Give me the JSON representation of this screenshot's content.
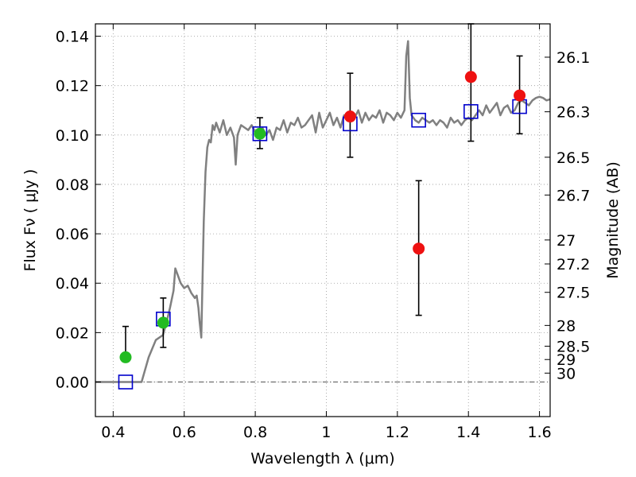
{
  "chart_data": {
    "type": "scatter",
    "xlabel": "Wavelength  λ (μm)",
    "ylabel": "Flux  Fν  ( μJy )",
    "y2label": "Magnitude (AB)",
    "xlim": [
      0.35,
      1.63
    ],
    "ylim": [
      -0.014,
      0.145
    ],
    "grid": true,
    "x_ticks": [
      0.4,
      0.6,
      0.8,
      1.0,
      1.2,
      1.4,
      1.6
    ],
    "x_tick_labels": [
      "0.4",
      "0.6",
      "0.8",
      "1",
      "1.2",
      "1.4",
      "1.6"
    ],
    "y_ticks": [
      0.0,
      0.02,
      0.04,
      0.06,
      0.08,
      0.1,
      0.12,
      0.14
    ],
    "y_tick_labels": [
      "0.00",
      "0.02",
      "0.04",
      "0.06",
      "0.08",
      "0.10",
      "0.12",
      "0.14"
    ],
    "magnitude_ticks": [
      {
        "label": "26.1",
        "flux": 0.1315
      },
      {
        "label": "26.3",
        "flux": 0.1094
      },
      {
        "label": "26.5",
        "flux": 0.091
      },
      {
        "label": "26.7",
        "flux": 0.0757
      },
      {
        "label": "27",
        "flux": 0.0575
      },
      {
        "label": "27.2",
        "flux": 0.0478
      },
      {
        "label": "27.5",
        "flux": 0.0363
      },
      {
        "label": "28",
        "flux": 0.0229
      },
      {
        "label": "28.5",
        "flux": 0.0145
      },
      {
        "label": "29",
        "flux": 0.0091
      },
      {
        "label": "30",
        "flux": 0.0036
      }
    ],
    "series": [
      {
        "kind": "line",
        "color": "#808080",
        "x": [
          0.35,
          0.48,
          0.5,
          0.52,
          0.54,
          0.55,
          0.56,
          0.57,
          0.575,
          0.58,
          0.59,
          0.6,
          0.61,
          0.62,
          0.63,
          0.635,
          0.64,
          0.643,
          0.648,
          0.655,
          0.66,
          0.665,
          0.67,
          0.675,
          0.68,
          0.685,
          0.69,
          0.7,
          0.71,
          0.72,
          0.73,
          0.74,
          0.745,
          0.75,
          0.76,
          0.77,
          0.78,
          0.79,
          0.8,
          0.81,
          0.82,
          0.83,
          0.84,
          0.85,
          0.86,
          0.87,
          0.88,
          0.89,
          0.9,
          0.91,
          0.92,
          0.93,
          0.94,
          0.95,
          0.96,
          0.97,
          0.98,
          0.99,
          1.0,
          1.01,
          1.02,
          1.03,
          1.04,
          1.05,
          1.06,
          1.07,
          1.08,
          1.09,
          1.1,
          1.11,
          1.12,
          1.13,
          1.14,
          1.15,
          1.16,
          1.17,
          1.18,
          1.19,
          1.2,
          1.21,
          1.22,
          1.225,
          1.23,
          1.235,
          1.24,
          1.25,
          1.26,
          1.27,
          1.28,
          1.29,
          1.3,
          1.31,
          1.32,
          1.33,
          1.34,
          1.35,
          1.36,
          1.37,
          1.38,
          1.39,
          1.4,
          1.41,
          1.42,
          1.43,
          1.44,
          1.45,
          1.46,
          1.47,
          1.48,
          1.49,
          1.5,
          1.51,
          1.52,
          1.53,
          1.54,
          1.55,
          1.56,
          1.57,
          1.58,
          1.59,
          1.6,
          1.61,
          1.62,
          1.63
        ],
        "y": [
          0.0,
          0.0,
          0.01,
          0.017,
          0.019,
          0.024,
          0.03,
          0.037,
          0.046,
          0.044,
          0.04,
          0.038,
          0.039,
          0.036,
          0.034,
          0.035,
          0.03,
          0.025,
          0.018,
          0.065,
          0.085,
          0.095,
          0.098,
          0.097,
          0.104,
          0.102,
          0.105,
          0.101,
          0.106,
          0.1,
          0.103,
          0.099,
          0.088,
          0.1,
          0.104,
          0.103,
          0.102,
          0.104,
          0.101,
          0.1,
          0.103,
          0.1,
          0.102,
          0.098,
          0.103,
          0.102,
          0.106,
          0.101,
          0.105,
          0.104,
          0.107,
          0.103,
          0.104,
          0.106,
          0.108,
          0.101,
          0.109,
          0.103,
          0.106,
          0.109,
          0.104,
          0.107,
          0.103,
          0.108,
          0.106,
          0.109,
          0.107,
          0.11,
          0.105,
          0.109,
          0.106,
          0.108,
          0.107,
          0.11,
          0.105,
          0.109,
          0.108,
          0.106,
          0.109,
          0.107,
          0.11,
          0.132,
          0.138,
          0.115,
          0.108,
          0.106,
          0.105,
          0.107,
          0.106,
          0.105,
          0.106,
          0.104,
          0.106,
          0.105,
          0.103,
          0.107,
          0.105,
          0.106,
          0.104,
          0.106,
          0.107,
          0.106,
          0.108,
          0.11,
          0.108,
          0.112,
          0.109,
          0.111,
          0.113,
          0.108,
          0.111,
          0.112,
          0.109,
          0.11,
          0.113,
          0.114,
          0.113,
          0.112,
          0.114,
          0.115,
          0.1155,
          0.115,
          0.114,
          0.1145
        ]
      },
      {
        "kind": "open-square",
        "color": "#0000cc",
        "x": [
          0.435,
          0.541,
          0.813,
          1.067,
          1.26,
          1.407,
          1.544
        ],
        "y": [
          0.0,
          0.0255,
          0.1005,
          0.1045,
          0.106,
          0.1095,
          0.1115
        ]
      },
      {
        "kind": "filled-circle",
        "color": "#22bb22",
        "x": [
          0.435,
          0.541,
          0.813
        ],
        "y": [
          0.01,
          0.024,
          0.1005
        ],
        "err_low": [
          null,
          0.014,
          0.0945
        ],
        "err_high": [
          0.0225,
          0.034,
          0.107
        ]
      },
      {
        "kind": "filled-circle",
        "color": "#ee1111",
        "x": [
          1.067,
          1.26,
          1.407,
          1.544
        ],
        "y": [
          0.1075,
          0.054,
          0.1235,
          0.116
        ],
        "err_low": [
          0.091,
          0.027,
          0.0975,
          0.1005
        ],
        "err_high": [
          0.125,
          0.0815,
          0.145,
          0.132
        ]
      }
    ],
    "reference_line": {
      "y": 0.0,
      "style": "dash-dot",
      "color": "#555555"
    }
  }
}
